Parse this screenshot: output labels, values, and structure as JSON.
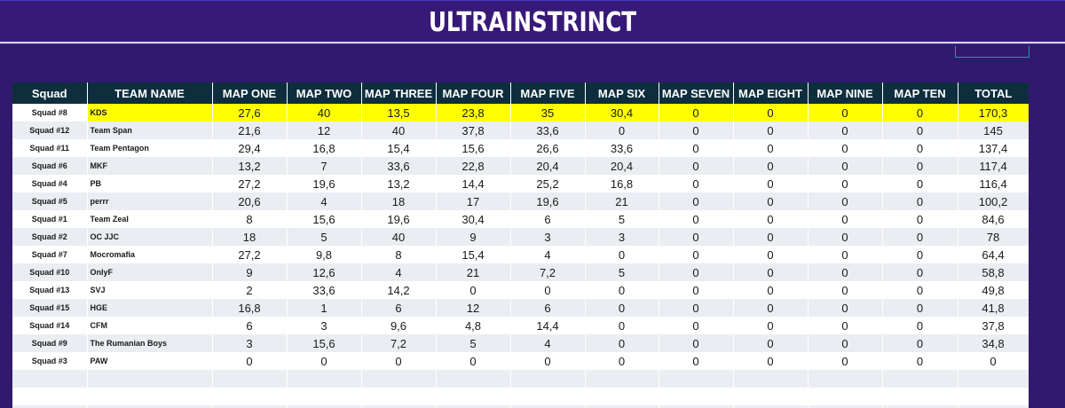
{
  "title": "ULTRAINSTRINCT",
  "columns": [
    "Squad",
    "TEAM NAME",
    "MAP ONE",
    "MAP TWO",
    "MAP THREE",
    "MAP FOUR",
    "MAP FIVE",
    "MAP SIX",
    "MAP SEVEN",
    "MAP EIGHT",
    "MAP NINE",
    "MAP TEN",
    "TOTAL"
  ],
  "rows": [
    {
      "squad": "Squad #8",
      "team": "KDS",
      "maps": [
        "27,6",
        "40",
        "13,5",
        "23,8",
        "35",
        "30,4",
        "0",
        "0",
        "0",
        "0"
      ],
      "total": "170,3"
    },
    {
      "squad": "Squad #12",
      "team": "Team Span",
      "maps": [
        "21,6",
        "12",
        "40",
        "37,8",
        "33,6",
        "0",
        "0",
        "0",
        "0",
        "0"
      ],
      "total": "145"
    },
    {
      "squad": "Squad #11",
      "team": "Team Pentagon",
      "maps": [
        "29,4",
        "16,8",
        "15,4",
        "15,6",
        "26,6",
        "33,6",
        "0",
        "0",
        "0",
        "0"
      ],
      "total": "137,4"
    },
    {
      "squad": "Squad #6",
      "team": "MKF",
      "maps": [
        "13,2",
        "7",
        "33,6",
        "22,8",
        "20,4",
        "20,4",
        "0",
        "0",
        "0",
        "0"
      ],
      "total": "117,4"
    },
    {
      "squad": "Squad #4",
      "team": "PB",
      "maps": [
        "27,2",
        "19,6",
        "13,2",
        "14,4",
        "25,2",
        "16,8",
        "0",
        "0",
        "0",
        "0"
      ],
      "total": "116,4"
    },
    {
      "squad": "Squad #5",
      "team": "perrr",
      "maps": [
        "20,6",
        "4",
        "18",
        "17",
        "19,6",
        "21",
        "0",
        "0",
        "0",
        "0"
      ],
      "total": "100,2"
    },
    {
      "squad": "Squad #1",
      "team": "Team Zeal",
      "maps": [
        "8",
        "15,6",
        "19,6",
        "30,4",
        "6",
        "5",
        "0",
        "0",
        "0",
        "0"
      ],
      "total": "84,6"
    },
    {
      "squad": "Squad #2",
      "team": "OC JJC",
      "maps": [
        "18",
        "5",
        "40",
        "9",
        "3",
        "3",
        "0",
        "0",
        "0",
        "0"
      ],
      "total": "78"
    },
    {
      "squad": "Squad #7",
      "team": "Mocromafia",
      "maps": [
        "27,2",
        "9,8",
        "8",
        "15,4",
        "4",
        "0",
        "0",
        "0",
        "0",
        "0"
      ],
      "total": "64,4"
    },
    {
      "squad": "Squad #10",
      "team": "OnlyF",
      "maps": [
        "9",
        "12,6",
        "4",
        "21",
        "7,2",
        "5",
        "0",
        "0",
        "0",
        "0"
      ],
      "total": "58,8"
    },
    {
      "squad": "Squad #13",
      "team": "SVJ",
      "maps": [
        "2",
        "33,6",
        "14,2",
        "0",
        "0",
        "0",
        "0",
        "0",
        "0",
        "0"
      ],
      "total": "49,8"
    },
    {
      "squad": "Squad #15",
      "team": "HGE",
      "maps": [
        "16,8",
        "1",
        "6",
        "12",
        "6",
        "0",
        "0",
        "0",
        "0",
        "0"
      ],
      "total": "41,8"
    },
    {
      "squad": "Squad #14",
      "team": "CFM",
      "maps": [
        "6",
        "3",
        "9,6",
        "4,8",
        "14,4",
        "0",
        "0",
        "0",
        "0",
        "0"
      ],
      "total": "37,8"
    },
    {
      "squad": "Squad #9",
      "team": "The Rumanian Boys",
      "maps": [
        "3",
        "15,6",
        "7,2",
        "5",
        "4",
        "0",
        "0",
        "0",
        "0",
        "0"
      ],
      "total": "34,8"
    },
    {
      "squad": "Squad #3",
      "team": "PAW",
      "maps": [
        "0",
        "0",
        "0",
        "0",
        "0",
        "0",
        "0",
        "0",
        "0",
        "0"
      ],
      "total": "0"
    }
  ],
  "highlight_color": "#ffff00",
  "header_color": "#0e2e3e",
  "background_color": "#311a6e"
}
